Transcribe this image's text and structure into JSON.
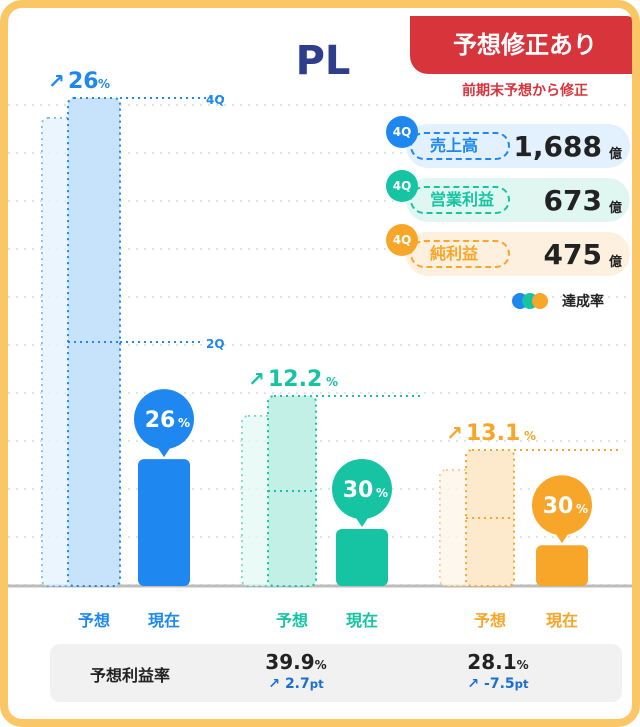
{
  "title": "PL",
  "banner": {
    "label": "予想修正あり",
    "sub": "前期末予想から修正"
  },
  "kpis": [
    {
      "quarter": "4Q",
      "name": "売上高",
      "value": "1,688",
      "unit": "億",
      "color": "#1e88f0",
      "bg": "#e3f0fd"
    },
    {
      "quarter": "4Q",
      "name": "営業利益",
      "value": "673",
      "unit": "億",
      "color": "#16c4a4",
      "bg": "#e0f7f1"
    },
    {
      "quarter": "4Q",
      "name": "純利益",
      "value": "475",
      "unit": "億",
      "color": "#f7a62a",
      "bg": "#fdf0de"
    }
  ],
  "legend": {
    "label": "達成率",
    "colors": [
      "#1e88f0",
      "#16c4a4",
      "#f7a62a"
    ]
  },
  "chart_data": {
    "type": "bar",
    "unit": "%",
    "groups": [
      {
        "forecast": 100,
        "actual": 26,
        "label_forecast": "予想",
        "label_actual": "現在",
        "achieved": "26",
        "revision": "26",
        "color": "#1e88f0",
        "light": "#c7e3fb",
        "marker_4q": "4Q",
        "marker_2q": "2Q"
      },
      {
        "forecast": 100,
        "actual": 30,
        "label_forecast": "予想",
        "label_actual": "現在",
        "achieved": "30",
        "revision": "12.2",
        "color": "#16c4a4",
        "light": "#c3f0e6"
      },
      {
        "forecast": 100,
        "actual": 30,
        "label_forecast": "予想",
        "label_actual": "現在",
        "achieved": "30",
        "revision": "13.1",
        "color": "#f7a62a",
        "light": "#fde9cc"
      }
    ]
  },
  "footer": {
    "label": "予想利益率",
    "values": [
      {
        "value": "39.9",
        "unit": "%",
        "delta": "2.7",
        "delta_unit": "pt"
      },
      {
        "value": "28.1",
        "unit": "%",
        "delta": "-7.5",
        "delta_unit": "pt"
      }
    ]
  }
}
